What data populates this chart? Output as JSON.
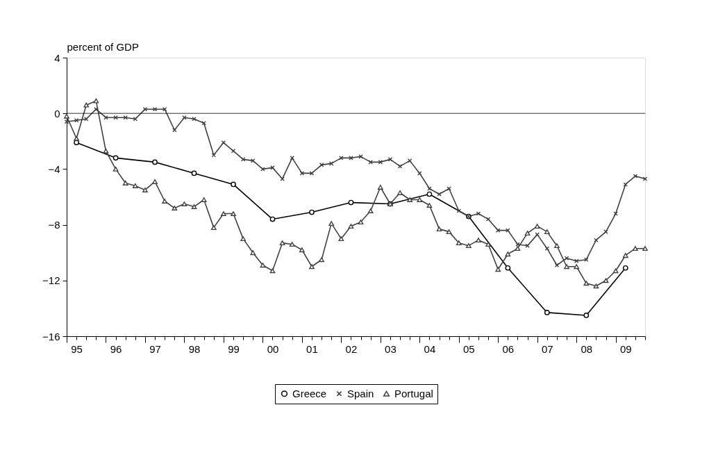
{
  "chart_data": {
    "type": "line",
    "ylabel": "percent of GDP",
    "categories": [
      null,
      "95",
      null,
      null,
      null,
      "96",
      null,
      null,
      null,
      "97",
      null,
      null,
      null,
      "98",
      null,
      null,
      null,
      "99",
      null,
      null,
      null,
      "00",
      null,
      null,
      null,
      "01",
      null,
      null,
      null,
      "02",
      null,
      null,
      null,
      "03",
      null,
      null,
      null,
      "04",
      null,
      null,
      null,
      "05",
      null,
      null,
      null,
      "06",
      null,
      null,
      null,
      "07",
      null,
      null,
      null,
      "08",
      null,
      null,
      null,
      "09",
      null,
      null
    ],
    "series": [
      {
        "name": "Greece",
        "color": "#000000",
        "marker": "circle",
        "x": [
          "95",
          "96",
          "97",
          "98",
          "99",
          "00",
          "01",
          "02",
          "03",
          "04",
          "05",
          "06",
          "07",
          "08",
          "09"
        ],
        "values": [
          -2.1,
          -3.2,
          -3.5,
          -4.3,
          -5.1,
          -7.6,
          -7.1,
          -6.4,
          -6.5,
          -5.8,
          -7.4,
          -11.1,
          -14.3,
          -14.5,
          -11.1
        ]
      },
      {
        "name": "Spain",
        "color": "#404040",
        "marker": "cross",
        "values": [
          -0.6,
          -0.5,
          -0.4,
          0.3,
          -0.3,
          -0.3,
          -0.3,
          -0.4,
          0.3,
          0.3,
          0.3,
          -1.2,
          -0.3,
          -0.4,
          -0.7,
          -3.0,
          -2.1,
          -2.7,
          -3.3,
          -3.4,
          -4.0,
          -3.9,
          -4.7,
          -3.2,
          -4.3,
          -4.3,
          -3.7,
          -3.6,
          -3.2,
          -3.2,
          -3.1,
          -3.5,
          -3.5,
          -3.3,
          -3.8,
          -3.4,
          -4.3,
          -5.4,
          -5.8,
          -5.4,
          -7.0,
          -7.4,
          -7.2,
          -7.6,
          -8.4,
          -8.4,
          -9.4,
          -9.5,
          -8.7,
          -9.7,
          -10.9,
          -10.4,
          -10.6,
          -10.5,
          -9.1,
          -8.5,
          -7.2,
          -5.1,
          -4.5,
          -4.7
        ]
      },
      {
        "name": "Portugal",
        "color": "#404040",
        "marker": "triangle",
        "values": [
          -0.2,
          -1.8,
          0.6,
          0.9,
          -2.7,
          -4.0,
          -5.0,
          -5.2,
          -5.5,
          -4.9,
          -6.3,
          -6.8,
          -6.5,
          -6.7,
          -6.2,
          -8.2,
          -7.2,
          -7.2,
          -9.0,
          -10.0,
          -10.9,
          -11.3,
          -9.3,
          -9.4,
          -9.8,
          -11.0,
          -10.5,
          -7.9,
          -9.0,
          -8.1,
          -7.8,
          -7.0,
          -5.3,
          -6.5,
          -5.7,
          -6.2,
          -6.2,
          -6.6,
          -8.3,
          -8.5,
          -9.3,
          -9.5,
          -9.1,
          -9.4,
          -11.2,
          -10.1,
          -9.7,
          -8.6,
          -8.1,
          -8.5,
          -9.5,
          -11.0,
          -11.0,
          -12.2,
          -12.4,
          -12.0,
          -11.3,
          -10.2,
          -9.7,
          -9.7
        ]
      }
    ],
    "ylim": [
      -16,
      4
    ],
    "yticks": [
      -16,
      -12,
      -8,
      -4,
      0,
      4
    ],
    "ref_lines": [
      {
        "axis": "y",
        "value": 0,
        "color": "#000000"
      }
    ],
    "grid": false,
    "legend": "bottom",
    "line_style": "solid"
  }
}
